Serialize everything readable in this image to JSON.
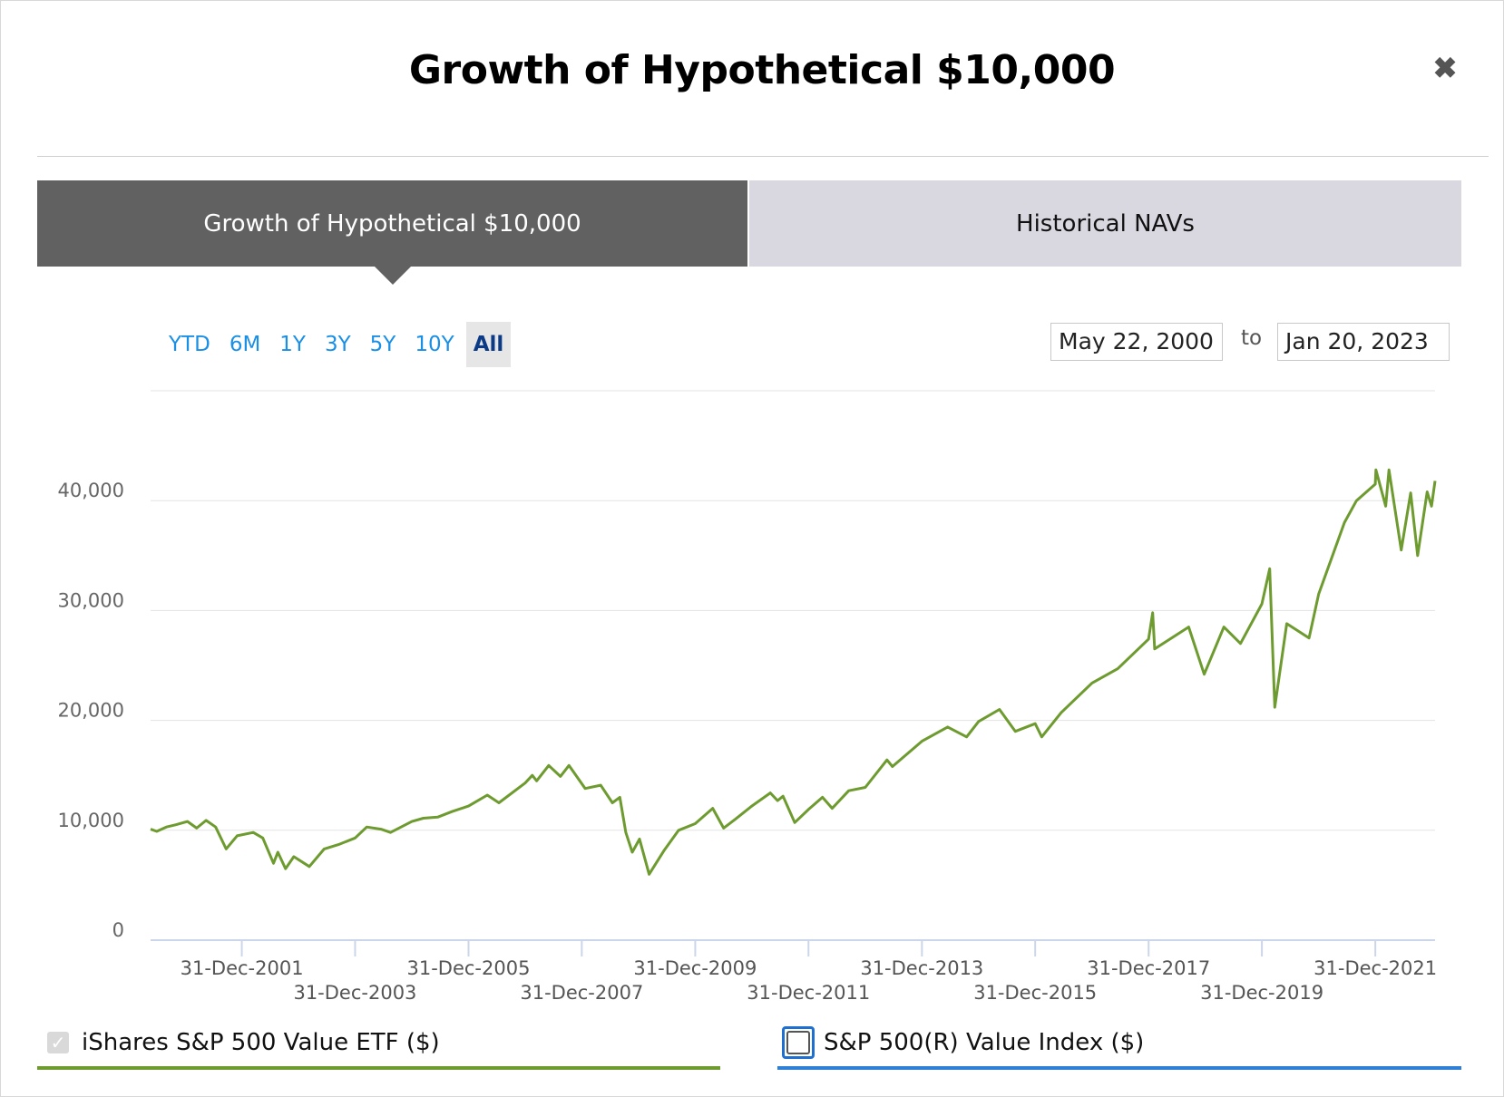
{
  "title": "Growth of Hypothetical $10,000",
  "close_icon": "close-icon",
  "tabs": [
    {
      "label": "Growth of Hypothetical $10,000",
      "active": true
    },
    {
      "label": "Historical NAVs",
      "active": false
    }
  ],
  "ranges": [
    "YTD",
    "6M",
    "1Y",
    "3Y",
    "5Y",
    "10Y",
    "All"
  ],
  "active_range": "All",
  "date_range": {
    "from": "May 22, 2000",
    "separator": "to",
    "to": "Jan 20, 2023"
  },
  "legend": [
    {
      "label": "iShares S&P 500 Value ETF ($)",
      "checked": true,
      "color": "#6e9b2f"
    },
    {
      "label": "S&P 500(R) Value Index ($)",
      "checked": false,
      "color": "#2f7fd6"
    }
  ],
  "chart_data": {
    "type": "line",
    "title": "",
    "xlabel": "",
    "ylabel": "",
    "x_range": [
      "2000-05-22",
      "2023-01-20"
    ],
    "ylim": [
      0,
      50000
    ],
    "yticks": [
      0,
      10000,
      20000,
      30000,
      40000
    ],
    "ytick_labels": [
      "0",
      "10,000",
      "20,000",
      "30,000",
      "40,000"
    ],
    "xtick_labels": [
      "31-Dec-2001",
      "31-Dec-2003",
      "31-Dec-2005",
      "31-Dec-2007",
      "31-Dec-2009",
      "31-Dec-2011",
      "31-Dec-2013",
      "31-Dec-2015",
      "31-Dec-2017",
      "31-Dec-2019",
      "31-Dec-2021"
    ],
    "xtick_dates": [
      "2001-12-31",
      "2003-12-31",
      "2005-12-31",
      "2007-12-31",
      "2009-12-31",
      "2011-12-31",
      "2013-12-31",
      "2015-12-31",
      "2017-12-31",
      "2019-12-31",
      "2021-12-31"
    ],
    "grid": true,
    "series": [
      {
        "name": "iShares S&P 500 Value ETF ($)",
        "color": "#6e9b2f",
        "points": [
          [
            "2000-05-22",
            10100
          ],
          [
            "2000-07-01",
            9900
          ],
          [
            "2000-09-01",
            10300
          ],
          [
            "2000-11-01",
            10500
          ],
          [
            "2001-01-15",
            10800
          ],
          [
            "2001-03-15",
            10200
          ],
          [
            "2001-05-15",
            10900
          ],
          [
            "2001-07-15",
            10300
          ],
          [
            "2001-09-21",
            8300
          ],
          [
            "2001-12-01",
            9500
          ],
          [
            "2002-03-15",
            9800
          ],
          [
            "2002-05-15",
            9300
          ],
          [
            "2002-07-23",
            7000
          ],
          [
            "2002-08-20",
            8000
          ],
          [
            "2002-10-09",
            6500
          ],
          [
            "2002-12-01",
            7600
          ],
          [
            "2003-03-11",
            6700
          ],
          [
            "2003-06-15",
            8300
          ],
          [
            "2003-09-15",
            8700
          ],
          [
            "2003-12-31",
            9300
          ],
          [
            "2004-03-15",
            10300
          ],
          [
            "2004-06-15",
            10100
          ],
          [
            "2004-08-15",
            9800
          ],
          [
            "2004-12-31",
            10800
          ],
          [
            "2005-03-15",
            11100
          ],
          [
            "2005-06-15",
            11200
          ],
          [
            "2005-09-15",
            11700
          ],
          [
            "2005-12-31",
            12200
          ],
          [
            "2006-05-01",
            13200
          ],
          [
            "2006-07-15",
            12500
          ],
          [
            "2006-12-31",
            14300
          ],
          [
            "2007-02-15",
            15000
          ],
          [
            "2007-03-15",
            14500
          ],
          [
            "2007-06-01",
            15900
          ],
          [
            "2007-08-15",
            14900
          ],
          [
            "2007-10-09",
            15900
          ],
          [
            "2008-01-22",
            13800
          ],
          [
            "2008-05-01",
            14100
          ],
          [
            "2008-07-15",
            12500
          ],
          [
            "2008-09-01",
            13000
          ],
          [
            "2008-10-10",
            9800
          ],
          [
            "2008-11-20",
            8000
          ],
          [
            "2009-01-06",
            9200
          ],
          [
            "2009-03-09",
            6000
          ],
          [
            "2009-06-15",
            8200
          ],
          [
            "2009-09-15",
            10000
          ],
          [
            "2009-12-31",
            10600
          ],
          [
            "2010-04-23",
            12000
          ],
          [
            "2010-07-02",
            10200
          ],
          [
            "2010-09-15",
            11000
          ],
          [
            "2010-12-31",
            12200
          ],
          [
            "2011-04-29",
            13400
          ],
          [
            "2011-06-15",
            12700
          ],
          [
            "2011-07-20",
            13100
          ],
          [
            "2011-10-03",
            10700
          ],
          [
            "2011-12-31",
            11900
          ],
          [
            "2012-03-30",
            13000
          ],
          [
            "2012-06-01",
            12000
          ],
          [
            "2012-09-15",
            13600
          ],
          [
            "2012-12-31",
            13900
          ],
          [
            "2013-05-20",
            16400
          ],
          [
            "2013-06-24",
            15800
          ],
          [
            "2013-12-31",
            18100
          ],
          [
            "2014-06-15",
            19400
          ],
          [
            "2014-10-15",
            18500
          ],
          [
            "2014-12-31",
            19900
          ],
          [
            "2015-05-15",
            21000
          ],
          [
            "2015-08-25",
            19000
          ],
          [
            "2015-12-31",
            19700
          ],
          [
            "2016-02-11",
            18500
          ],
          [
            "2016-06-15",
            20700
          ],
          [
            "2016-12-31",
            23400
          ],
          [
            "2017-06-15",
            24700
          ],
          [
            "2017-12-31",
            27400
          ],
          [
            "2018-01-26",
            29800
          ],
          [
            "2018-02-08",
            26500
          ],
          [
            "2018-09-15",
            28500
          ],
          [
            "2018-12-24",
            24200
          ],
          [
            "2019-04-30",
            28500
          ],
          [
            "2019-08-15",
            27000
          ],
          [
            "2019-12-31",
            30600
          ],
          [
            "2020-02-19",
            33800
          ],
          [
            "2020-03-23",
            21200
          ],
          [
            "2020-06-08",
            28800
          ],
          [
            "2020-10-30",
            27500
          ],
          [
            "2020-12-31",
            31500
          ],
          [
            "2021-06-15",
            38000
          ],
          [
            "2021-09-01",
            40000
          ],
          [
            "2021-12-31",
            41500
          ],
          [
            "2022-01-04",
            42800
          ],
          [
            "2022-03-08",
            39500
          ],
          [
            "2022-03-29",
            42800
          ],
          [
            "2022-06-16",
            35500
          ],
          [
            "2022-08-16",
            40700
          ],
          [
            "2022-09-30",
            35000
          ],
          [
            "2022-11-30",
            40800
          ],
          [
            "2022-12-28",
            39500
          ],
          [
            "2023-01-20",
            41800
          ]
        ]
      }
    ]
  }
}
